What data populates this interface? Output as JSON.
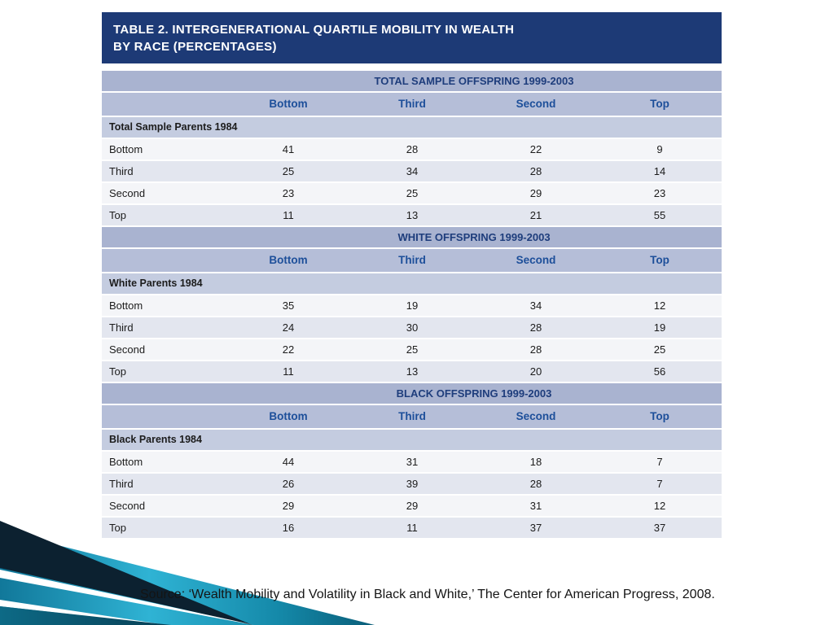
{
  "colors": {
    "title-bg": "#1d3a76",
    "title-text": "#ffffff",
    "section-band-bg": "#a9b3d0",
    "column-header-bg": "#b5bed8",
    "group-row-bg": "#c4cce0",
    "row-light-bg": "#f4f5f8",
    "row-dark-bg": "#e3e6ef",
    "column-header-text": "#1d4f9a",
    "band-text": "#1e3d7c",
    "body-text": "#1c1c1c",
    "teal-accent": "#2fb3d4"
  },
  "table": {
    "title_line1": "TABLE 2. INTERGENERATIONAL QUARTILE MOBILITY IN WEALTH",
    "title_line2": "BY RACE (PERCENTAGES)",
    "columns": [
      "Bottom",
      "Third",
      "Second",
      "Top"
    ],
    "sections": [
      {
        "header": "TOTAL SAMPLE OFFSPRING 1999-2003",
        "group_label": "Total Sample Parents 1984",
        "rows": [
          {
            "label": "Bottom",
            "values": [
              41,
              28,
              22,
              9
            ]
          },
          {
            "label": "Third",
            "values": [
              25,
              34,
              28,
              14
            ]
          },
          {
            "label": "Second",
            "values": [
              23,
              25,
              29,
              23
            ]
          },
          {
            "label": "Top",
            "values": [
              11,
              13,
              21,
              55
            ]
          }
        ]
      },
      {
        "header": "WHITE OFFSPRING 1999-2003",
        "group_label": "White Parents 1984",
        "rows": [
          {
            "label": "Bottom",
            "values": [
              35,
              19,
              34,
              12
            ]
          },
          {
            "label": "Third",
            "values": [
              24,
              30,
              28,
              19
            ]
          },
          {
            "label": "Second",
            "values": [
              22,
              25,
              28,
              25
            ]
          },
          {
            "label": "Top",
            "values": [
              11,
              13,
              20,
              56
            ]
          }
        ]
      },
      {
        "header": "BLACK OFFSPRING 1999-2003",
        "group_label": "Black Parents 1984",
        "rows": [
          {
            "label": "Bottom",
            "values": [
              44,
              31,
              18,
              7
            ]
          },
          {
            "label": "Third",
            "values": [
              26,
              39,
              28,
              7
            ]
          },
          {
            "label": "Second",
            "values": [
              29,
              29,
              31,
              12
            ]
          },
          {
            "label": "Top",
            "values": [
              16,
              11,
              37,
              37
            ]
          }
        ]
      }
    ]
  },
  "source_note": "Source: ‘Wealth Mobility and Volatility in Black and White,’ The Center for American Progress, 2008.",
  "chart_data": {
    "type": "table",
    "title": "TABLE 2. INTERGENERATIONAL QUARTILE MOBILITY IN WEALTH BY RACE (PERCENTAGES)",
    "columns": [
      "Bottom",
      "Third",
      "Second",
      "Top"
    ],
    "sections": [
      {
        "section_title": "TOTAL SAMPLE OFFSPRING 1999-2003",
        "row_group": "Total Sample Parents 1984",
        "rows": [
          {
            "parent_quartile": "Bottom",
            "values": [
              41,
              28,
              22,
              9
            ]
          },
          {
            "parent_quartile": "Third",
            "values": [
              25,
              34,
              28,
              14
            ]
          },
          {
            "parent_quartile": "Second",
            "values": [
              23,
              25,
              29,
              23
            ]
          },
          {
            "parent_quartile": "Top",
            "values": [
              11,
              13,
              21,
              55
            ]
          }
        ]
      },
      {
        "section_title": "WHITE OFFSPRING 1999-2003",
        "row_group": "White Parents 1984",
        "rows": [
          {
            "parent_quartile": "Bottom",
            "values": [
              35,
              19,
              34,
              12
            ]
          },
          {
            "parent_quartile": "Third",
            "values": [
              24,
              30,
              28,
              19
            ]
          },
          {
            "parent_quartile": "Second",
            "values": [
              22,
              25,
              28,
              25
            ]
          },
          {
            "parent_quartile": "Top",
            "values": [
              11,
              13,
              20,
              56
            ]
          }
        ]
      },
      {
        "section_title": "BLACK OFFSPRING 1999-2003",
        "row_group": "Black Parents 1984",
        "rows": [
          {
            "parent_quartile": "Bottom",
            "values": [
              44,
              31,
              18,
              7
            ]
          },
          {
            "parent_quartile": "Third",
            "values": [
              26,
              39,
              28,
              7
            ]
          },
          {
            "parent_quartile": "Second",
            "values": [
              29,
              29,
              31,
              12
            ]
          },
          {
            "parent_quartile": "Top",
            "values": [
              16,
              11,
              37,
              37
            ]
          }
        ]
      }
    ],
    "source": "Source: ‘Wealth Mobility and Volatility in Black and White,’ The Center for American Progress, 2008."
  }
}
